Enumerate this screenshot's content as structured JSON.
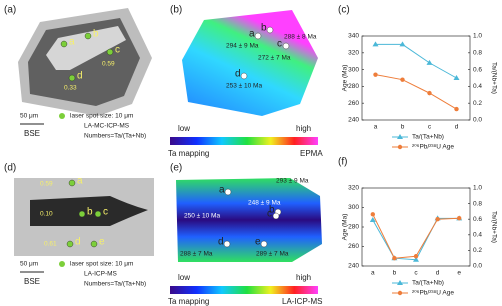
{
  "panels": {
    "a": {
      "label": "(a)",
      "spots": [
        "a",
        "b",
        "c",
        "d"
      ],
      "ratios": [
        "0.59",
        "0.33"
      ],
      "scale": "50 μm",
      "image": "BSE",
      "legend": [
        "laser spot size: 10 μm",
        "LA-MC-ICP-MS",
        "Numbers=Ta/(Ta+Nb)"
      ]
    },
    "b": {
      "label": "(b)",
      "spots": [
        "a",
        "b",
        "c",
        "d"
      ],
      "ages": [
        "294 ± 9 Ma",
        "288 ± 8 Ma",
        "272 ± 7 Ma",
        "253 ± 10 Ma"
      ],
      "low": "low",
      "high": "high",
      "mapping": "Ta mapping",
      "method": "EPMA"
    },
    "d": {
      "label": "(d)",
      "spots": [
        "a",
        "b",
        "c",
        "d",
        "e"
      ],
      "ratios": [
        "0.59",
        "0.10",
        "0.61"
      ],
      "scale": "50 μm",
      "image": "BSE",
      "legend": [
        "laser spot size: 10 μm",
        "LA-ICP-MS",
        "Numbers=Ta/(Ta+Nb)"
      ]
    },
    "e": {
      "label": "(e)",
      "spots": [
        "a",
        "b",
        "c",
        "d",
        "e"
      ],
      "ages": [
        "293 ± 9 Ma",
        "248 ± 9 Ma",
        "250 ± 10 Ma",
        "288 ± 7 Ma",
        "289 ± 7 Ma"
      ],
      "low": "low",
      "high": "high",
      "mapping": "Ta mapping",
      "method": "LA-ICP-MS"
    }
  },
  "chart_data": [
    {
      "type": "line",
      "label": "(c)",
      "categories": [
        "a",
        "b",
        "c",
        "d"
      ],
      "ylabel": "Age (Ma)",
      "y2label": "Ta/(Nb+Ta)",
      "ylim": [
        240,
        340
      ],
      "yticks": [
        240,
        260,
        280,
        300,
        320,
        340
      ],
      "y2lim": [
        0,
        1
      ],
      "y2ticks": [
        {
          "value": 0,
          "label": "0.0"
        },
        0.2,
        0.4,
        0.6,
        0.8,
        {
          "value": 1,
          "label": "1.0"
        }
      ],
      "series": [
        {
          "name": "Ta/(Ta+Nb)",
          "color": "#4bb8d8",
          "marker": "triangle",
          "axis": "y2",
          "values": [
            0.9,
            0.9,
            0.68,
            0.5
          ]
        },
        {
          "name": "²⁰⁶Pb/²³⁸U Age",
          "color": "#ee7d3a",
          "marker": "circle",
          "values": [
            294,
            288,
            272,
            253
          ]
        }
      ]
    },
    {
      "type": "line",
      "label": "(f)",
      "categories": [
        "a",
        "b",
        "c",
        "d",
        "e"
      ],
      "ylabel": "Age (Ma)",
      "y2label": "Ta/(Nb+Ta)",
      "ylim": [
        240,
        320
      ],
      "yticks": [
        240,
        260,
        280,
        300,
        320
      ],
      "y2lim": [
        0,
        1
      ],
      "y2ticks": [
        {
          "value": 0,
          "label": "0.0"
        },
        0.2,
        0.4,
        0.6,
        0.8,
        {
          "value": 1,
          "label": "1.0"
        }
      ],
      "series": [
        {
          "name": "Ta/(Ta+Nb)",
          "color": "#4bb8d8",
          "marker": "triangle",
          "axis": "y2",
          "values": [
            0.59,
            0.1,
            0.08,
            0.61,
            0.61
          ]
        },
        {
          "name": "²⁰⁶Pb/²³⁸U Age",
          "color": "#ee7d3a",
          "marker": "circle",
          "values": [
            293,
            248,
            250,
            288,
            289
          ]
        }
      ]
    }
  ]
}
